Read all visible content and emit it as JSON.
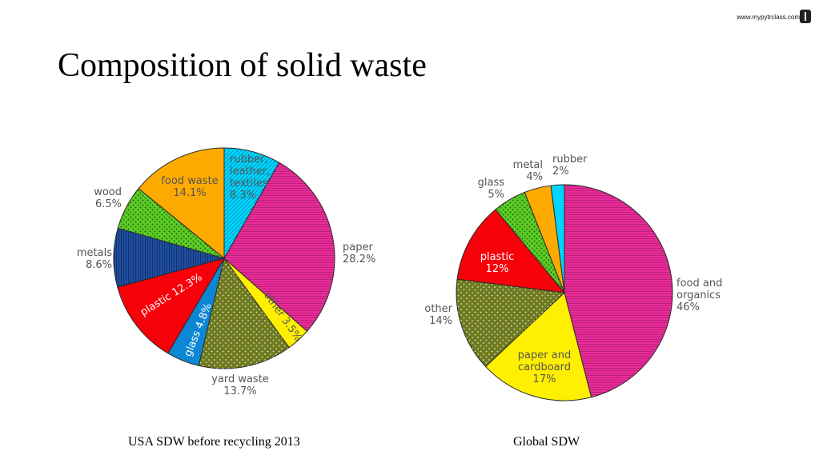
{
  "site": {
    "url": "www.mypytrclass.com"
  },
  "title": "Composition of solid waste",
  "chart_data": [
    {
      "type": "pie",
      "caption": "USA SDW before recycling 2013",
      "start": "12 o'clock, clockwise",
      "slices": [
        {
          "lines": [
            "rubber,",
            "leather,",
            "textiles",
            "8.3%"
          ],
          "value": 8.3,
          "color": "#00d4ff",
          "pattern": "diag",
          "label_color": "#555555"
        },
        {
          "lines": [
            "paper",
            "28.2%"
          ],
          "value": 28.2,
          "color": "#ec2b9a",
          "pattern": "hlines",
          "label_color": "#555555"
        },
        {
          "lines": [
            "other 3.5%"
          ],
          "value": 3.5,
          "color": "#ffef00",
          "pattern": "none",
          "label_color": "#555555"
        },
        {
          "lines": [
            "yard waste",
            "13.7%"
          ],
          "value": 13.7,
          "color": "#6e7a1e",
          "pattern": "dots-light",
          "label_color": "#555555"
        },
        {
          "lines": [
            "glass 4.8%"
          ],
          "value": 4.8,
          "color": "#0d86d4",
          "pattern": "none",
          "label_color": "#ffffff"
        },
        {
          "lines": [
            "plastic 12.3%"
          ],
          "value": 12.3,
          "color": "#f6000a",
          "pattern": "none",
          "label_color": "#ffffff"
        },
        {
          "lines": [
            "metals",
            "8.6%"
          ],
          "value": 8.6,
          "color": "#1e4fa3",
          "pattern": "vlines",
          "label_color": "#555555"
        },
        {
          "lines": [
            "wood",
            "6.5%"
          ],
          "value": 6.5,
          "color": "#5ccd26",
          "pattern": "dots-dark",
          "label_color": "#555555"
        },
        {
          "lines": [
            "food waste",
            "14.1%"
          ],
          "value": 14.1,
          "color": "#ffaa00",
          "pattern": "none",
          "label_color": "#555555"
        }
      ]
    },
    {
      "type": "pie",
      "caption": "Global SDW",
      "start": "12 o'clock, clockwise",
      "slices": [
        {
          "lines": [
            "food and",
            "organics",
            "46%"
          ],
          "value": 46,
          "color": "#ec2b9a",
          "pattern": "hlines",
          "label_color": "#555555"
        },
        {
          "lines": [
            "paper and",
            "cardboard",
            "17%"
          ],
          "value": 17,
          "color": "#ffef00",
          "pattern": "none",
          "label_color": "#555555"
        },
        {
          "lines": [
            "other",
            "14%"
          ],
          "value": 14,
          "color": "#6e7a1e",
          "pattern": "dots-light",
          "label_color": "#555555"
        },
        {
          "lines": [
            "plastic",
            "12%"
          ],
          "value": 12,
          "color": "#f6000a",
          "pattern": "none",
          "label_color": "#ffffff"
        },
        {
          "lines": [
            "glass",
            "5%"
          ],
          "value": 5,
          "color": "#5ccd26",
          "pattern": "dots-dark",
          "label_color": "#555555"
        },
        {
          "lines": [
            "metal",
            "4%"
          ],
          "value": 4,
          "color": "#ffaa00",
          "pattern": "none",
          "label_color": "#555555"
        },
        {
          "lines": [
            "rubber",
            "2%"
          ],
          "value": 2,
          "color": "#00d4ff",
          "pattern": "none",
          "label_color": "#555555"
        }
      ]
    }
  ]
}
